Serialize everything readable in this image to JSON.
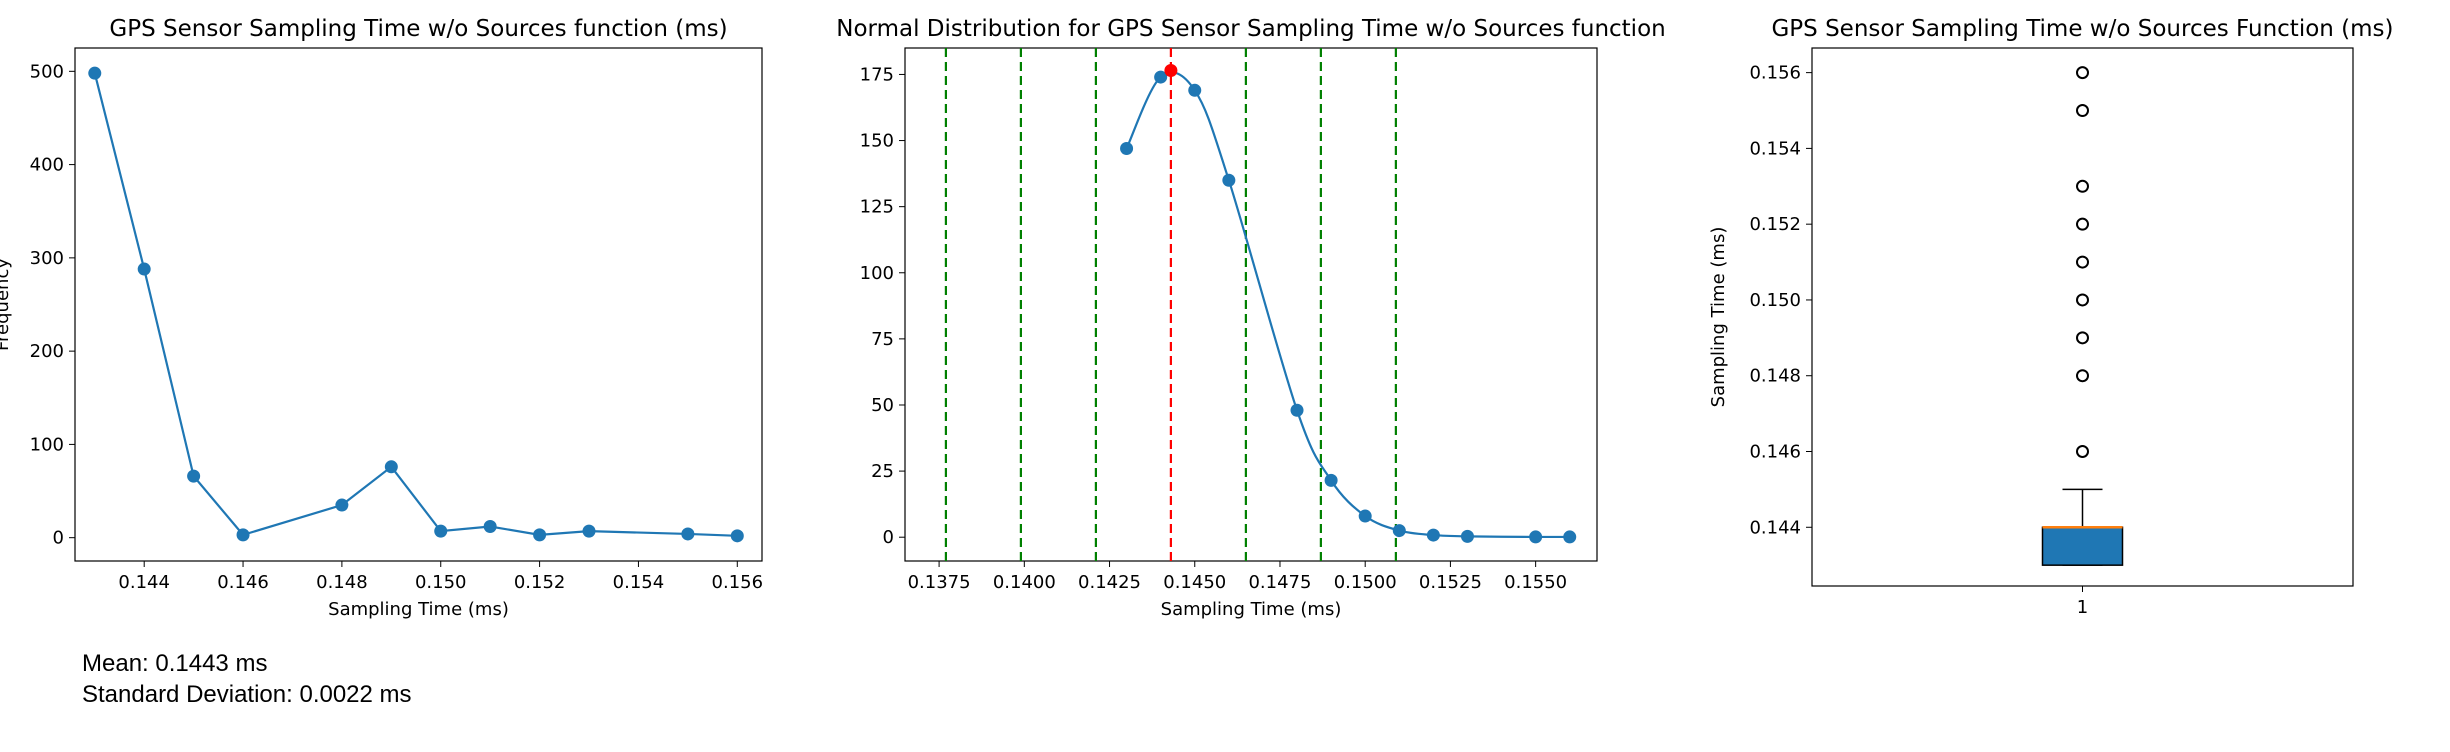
{
  "chart_data": [
    {
      "type": "line",
      "title": "GPS Sensor Sampling Time w/o Sources function (ms)",
      "xlabel": "Sampling Time (ms)",
      "ylabel": "Frequency",
      "xlim": [
        0.1426,
        0.1565
      ],
      "ylim": [
        -25,
        525
      ],
      "xticks": [
        "0.144",
        "0.146",
        "0.148",
        "0.150",
        "0.152",
        "0.154",
        "0.156"
      ],
      "yticks": [
        "0",
        "100",
        "200",
        "300",
        "400",
        "500"
      ],
      "color": "#1f77b4",
      "x": [
        0.143,
        0.144,
        0.145,
        0.146,
        0.148,
        0.149,
        0.15,
        0.151,
        0.152,
        0.153,
        0.155,
        0.156
      ],
      "y": [
        498,
        288,
        66,
        3,
        35,
        76,
        7,
        12,
        3,
        7,
        4,
        2
      ]
    },
    {
      "type": "line",
      "title": "Normal Distribution for GPS Sensor Sampling Time w/o Sources function",
      "xlabel": "Sampling Time (ms)",
      "ylabel": "",
      "xlim": [
        0.1365,
        0.1568
      ],
      "ylim": [
        -9,
        185
      ],
      "xticks": [
        "0.1375",
        "0.1400",
        "0.1425",
        "0.1450",
        "0.1475",
        "0.1500",
        "0.1525",
        "0.1550"
      ],
      "yticks": [
        "0",
        "25",
        "50",
        "75",
        "100",
        "125",
        "150",
        "175"
      ],
      "color": "#1f77b4",
      "points_x": [
        0.143,
        0.144,
        0.145,
        0.146,
        0.148,
        0.149,
        0.15,
        0.151,
        0.152,
        0.153,
        0.155,
        0.156
      ],
      "points_y": [
        147,
        174,
        169,
        135,
        48,
        21.5,
        8,
        2.5,
        0.8,
        0.3,
        0.1,
        0.1
      ],
      "mean": 0.1443,
      "mean_density": 176.5,
      "std": 0.0022,
      "mean_line_color": "#ff0000",
      "sigma_lines": [
        0.1377,
        0.1399,
        0.1421,
        0.1465,
        0.1487,
        0.1509
      ],
      "sigma_line_color": "#008000"
    },
    {
      "type": "box",
      "title": "GPS Sensor Sampling Time w/o Sources Function (ms)",
      "xlabel": "",
      "ylabel": "Sampling Time (ms)",
      "ylim": [
        0.14245,
        0.15665
      ],
      "yticks": [
        "0.144",
        "0.146",
        "0.148",
        "0.150",
        "0.152",
        "0.154",
        "0.156"
      ],
      "xticks": [
        "1"
      ],
      "q1": 0.143,
      "median": 0.144,
      "q3": 0.144,
      "whisker_low": 0.143,
      "whisker_high": 0.145,
      "fliers": [
        0.146,
        0.148,
        0.149,
        0.15,
        0.151,
        0.152,
        0.153,
        0.155,
        0.156
      ],
      "box_color": "#1f77b4",
      "median_color": "#ff7f0e"
    }
  ],
  "stats": {
    "mean_text": "Mean: 0.1443 ms",
    "std_text": "Standard Deviation: 0.0022 ms"
  }
}
